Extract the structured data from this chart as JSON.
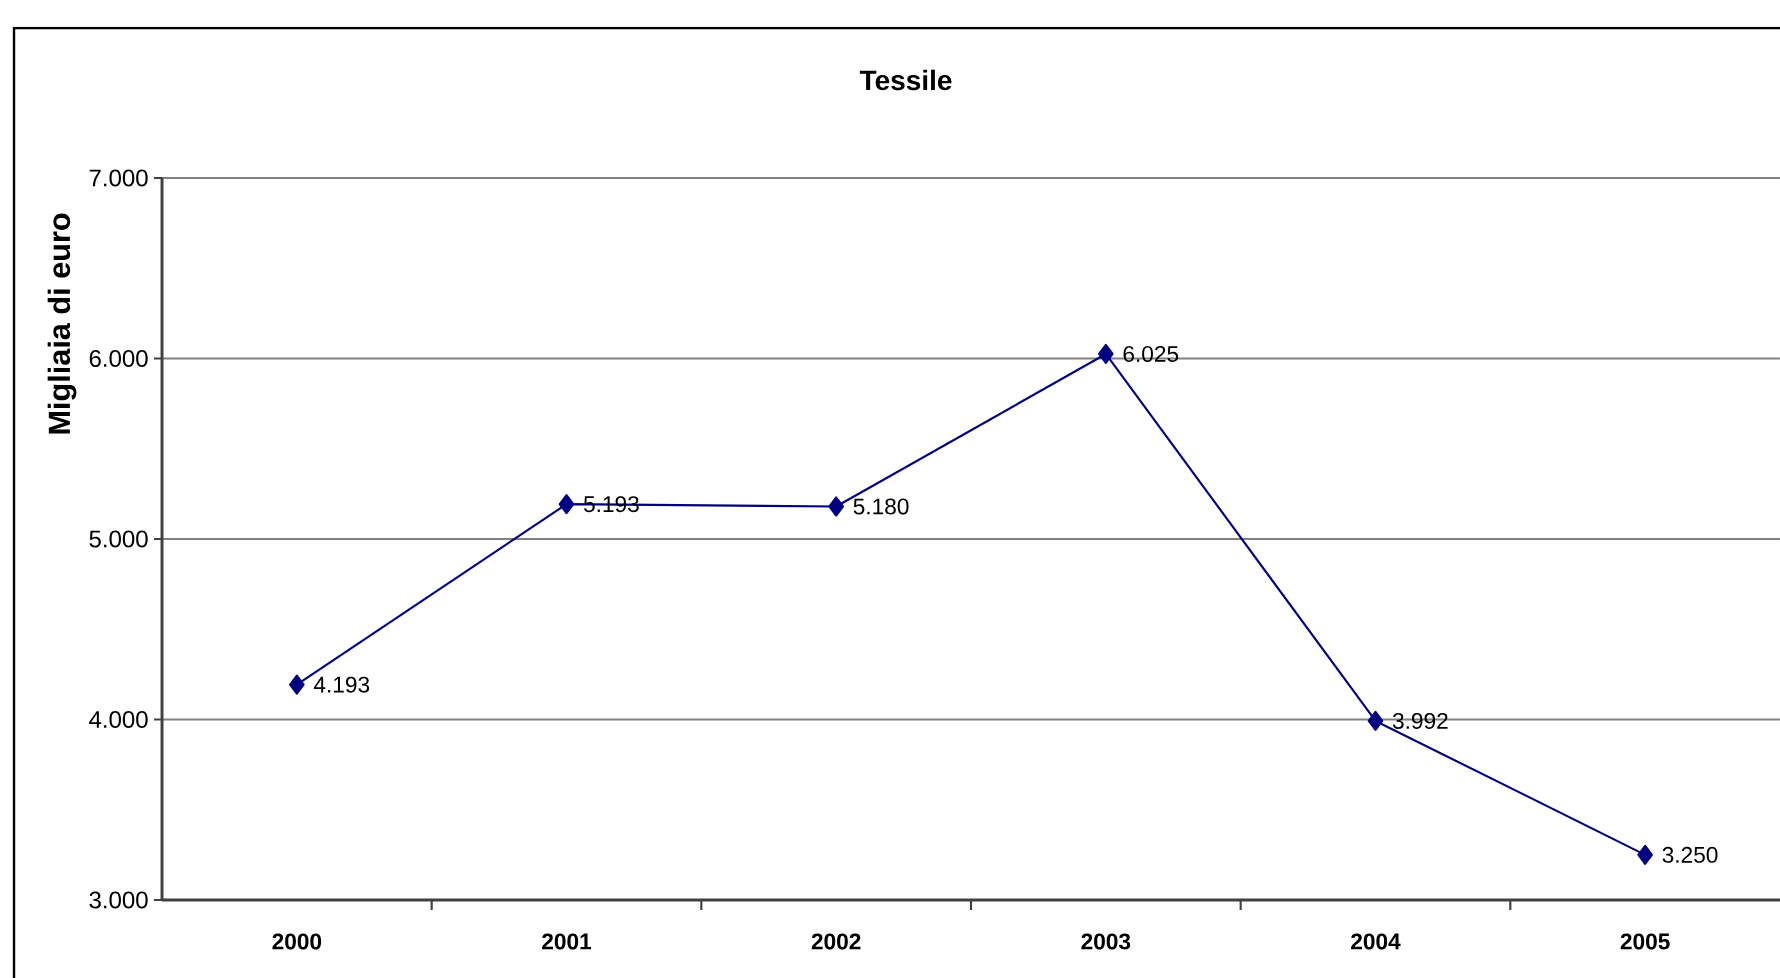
{
  "chart_data": {
    "type": "line",
    "title": "Tessile",
    "ylabel": "Migliaia di euro",
    "categories": [
      "2000",
      "2001",
      "2002",
      "2003",
      "2004",
      "2005"
    ],
    "values": [
      4193,
      5193,
      5180,
      6025,
      3992,
      3250
    ],
    "value_labels": [
      "4.193",
      "5.193",
      "5.180",
      "6.025",
      "3.992",
      "3.250"
    ],
    "color": "#000080",
    "marker": "diamond",
    "line_style": "solid",
    "grid": "y",
    "ylim": [
      3000,
      7000
    ],
    "yticks": [
      {
        "value": 3000,
        "label": "3.000"
      },
      {
        "value": 4000,
        "label": "4.000"
      },
      {
        "value": 5000,
        "label": "5.000"
      },
      {
        "value": 6000,
        "label": "6.000"
      },
      {
        "value": 7000,
        "label": "7.000"
      }
    ]
  }
}
